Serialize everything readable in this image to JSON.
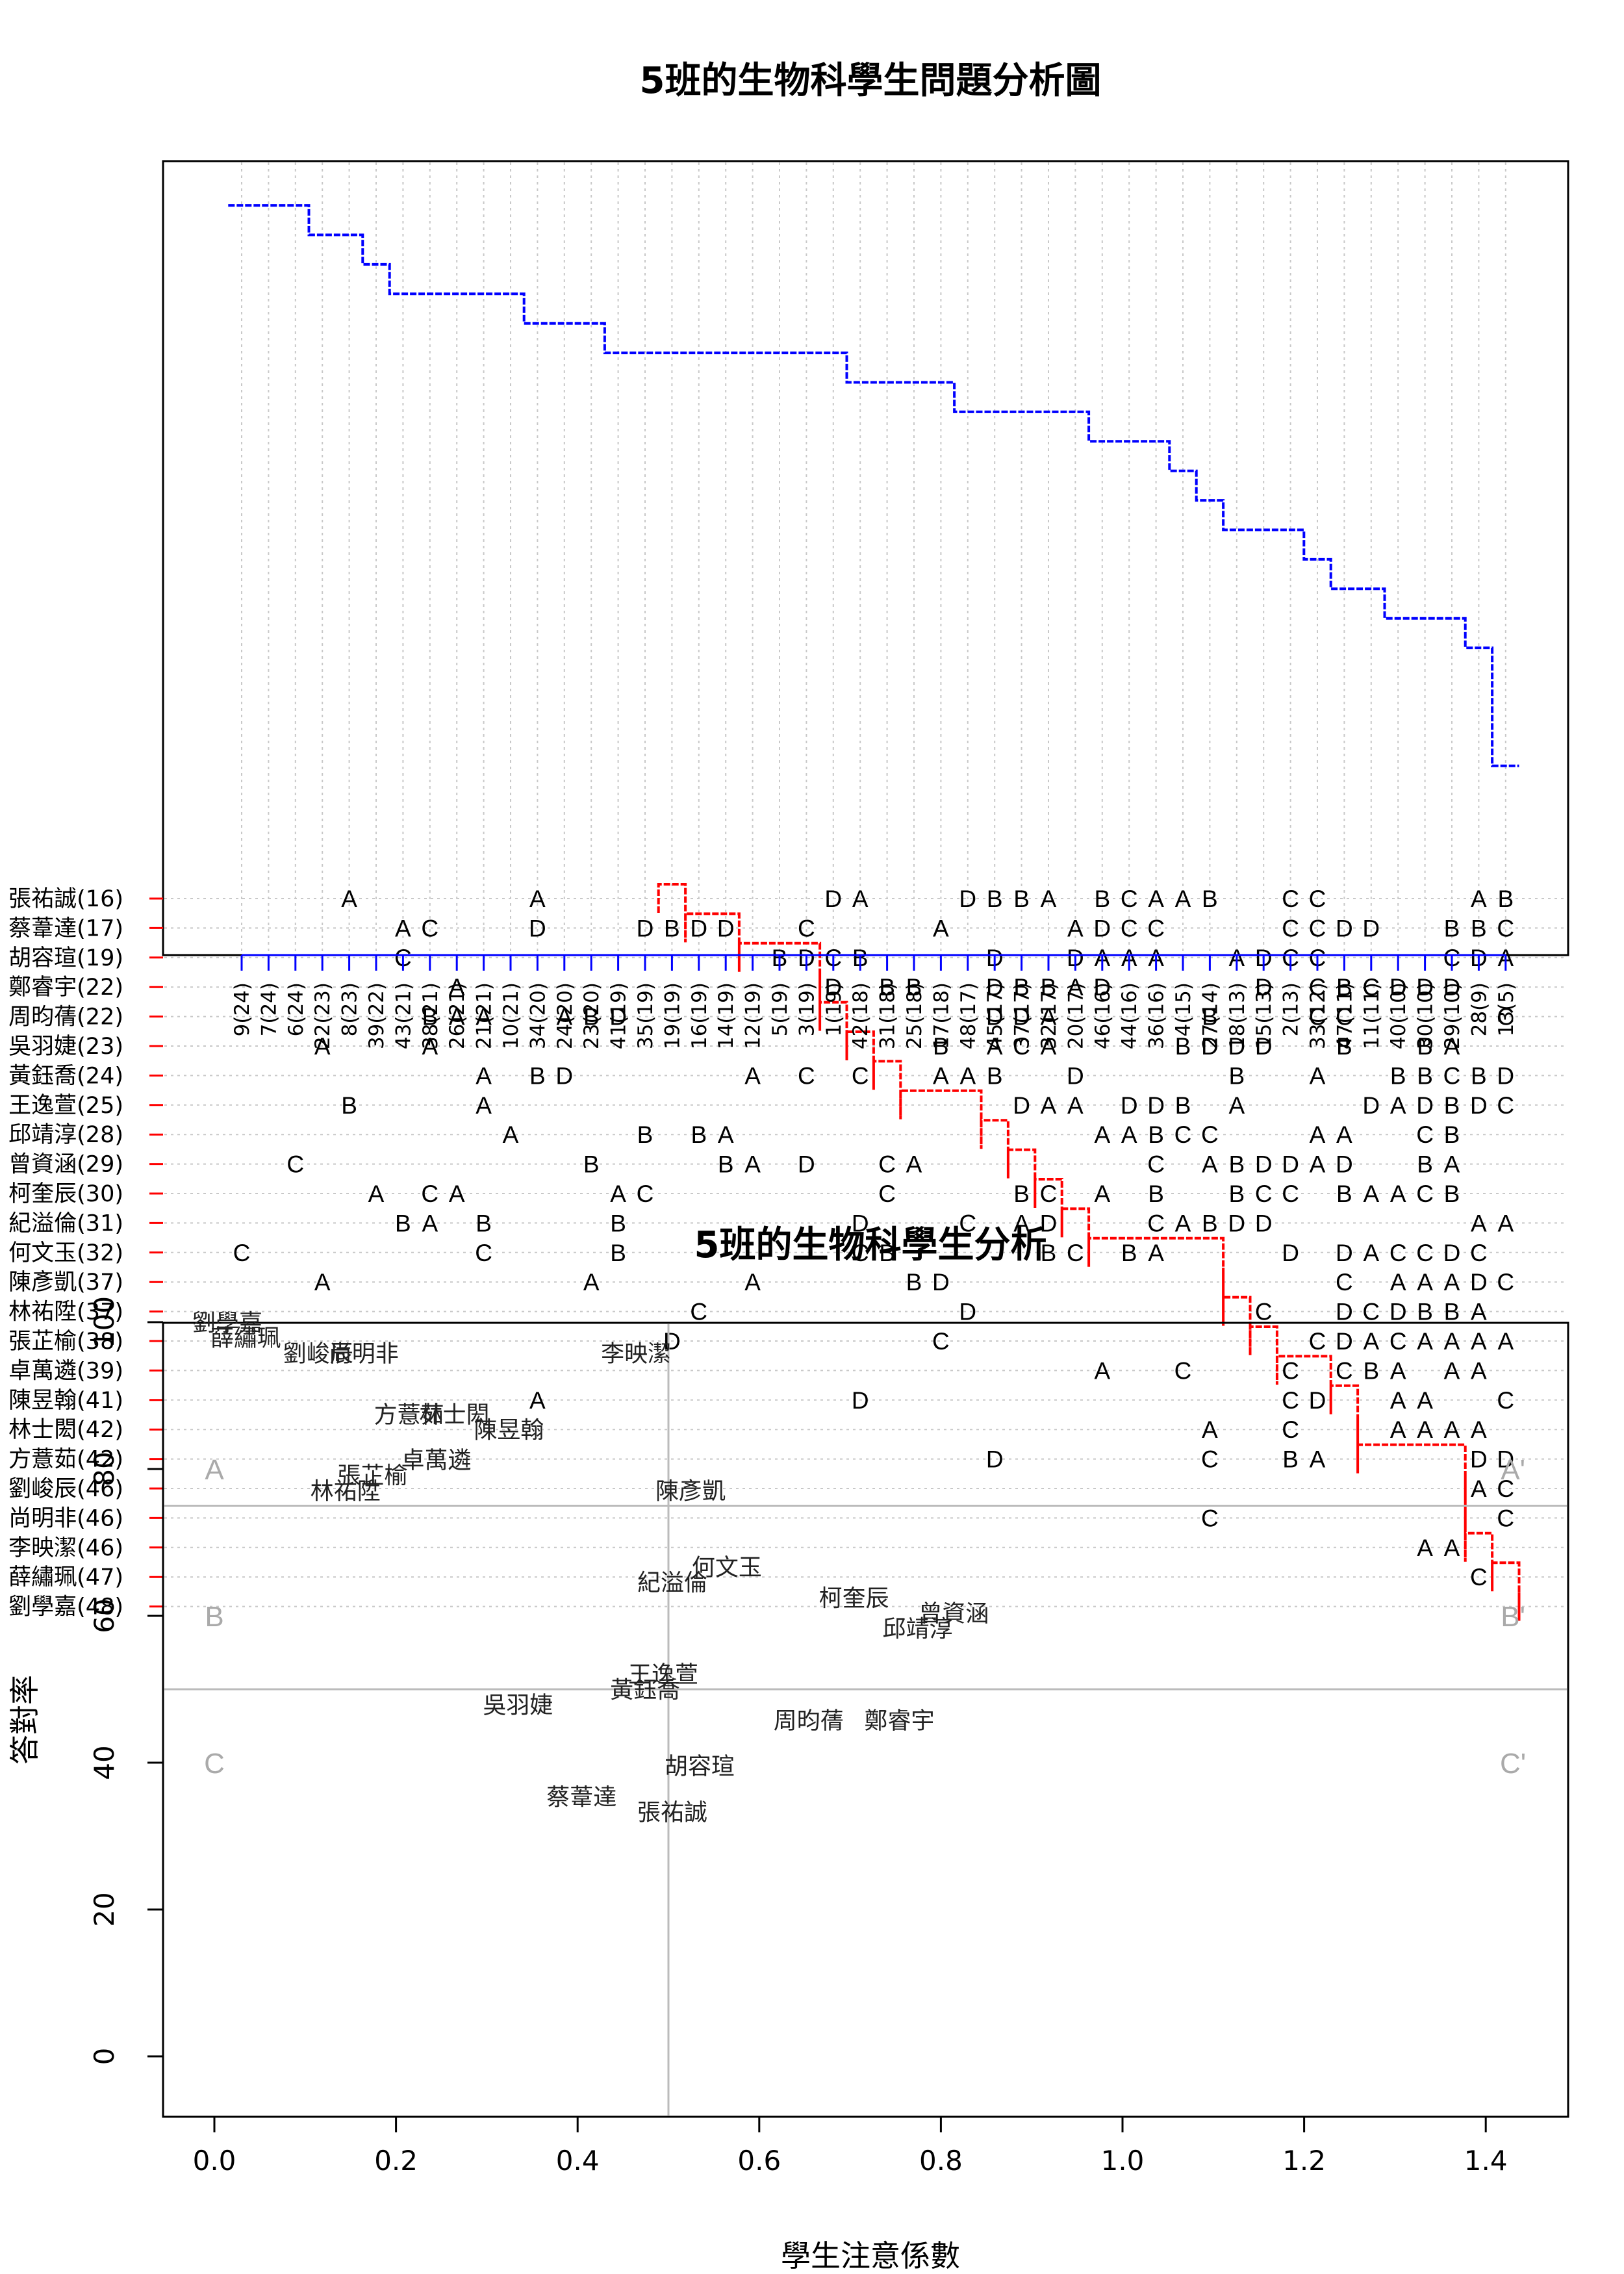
{
  "chart_data": [
    {
      "type": "scatter",
      "title": "5班的生物科學生問題分析圖",
      "students": [
        "劉學嘉(48)",
        "薛繡珮(47)",
        "李映潔(46)",
        "尚明非(46)",
        "劉峻辰(46)",
        "方薏茹(42)",
        "林士閎(42)",
        "陳昱翰(41)",
        "卓萬遴(39)",
        "張芷榆(38)",
        "林祐陞(37)",
        "陳彥凱(37)",
        "何文玉(32)",
        "紀溢倫(31)",
        "柯奎辰(30)",
        "曾資涵(29)",
        "邱靖淳(28)",
        "王逸萱(25)",
        "黃鈺喬(24)",
        "吳羽婕(23)",
        "周昀蒨(22)",
        "鄭睿宇(22)",
        "胡容瑄(19)",
        "蔡葦達(17)",
        "張祐誠(16)"
      ],
      "questions": [
        "9(24)",
        "7(24)",
        "6(24)",
        "22(23)",
        "8(23)",
        "39(22)",
        "43(21)",
        "38(21)",
        "26(21)",
        "21(21)",
        "10(21)",
        "34(20)",
        "24(20)",
        "23(20)",
        "41(19)",
        "35(19)",
        "19(19)",
        "16(19)",
        "14(19)",
        "12(19)",
        "5(19)",
        "3(19)",
        "1(19)",
        "42(18)",
        "31(18)",
        "25(18)",
        "17(18)",
        "48(17)",
        "45(17)",
        "37(17)",
        "32(17)",
        "20(17)",
        "46(16)",
        "44(16)",
        "36(16)",
        "4(15)",
        "27(14)",
        "18(13)",
        "15(13)",
        "2(13)",
        "33(12)",
        "47(11)",
        "11(11)",
        "40(10)",
        "30(10)",
        "29(10)",
        "28(9)",
        "13(5)"
      ],
      "wrong_answers": [
        "..............................................  ",
        "..............................................C.",
        "............................................AA..",
        "....................................C..........C",
        "..............................................AC",
        "............................D.......C..BA.....DD",
        "....................................A..C...AAAA.",
        "...........A...........D...............CD..AA..C",
        "................................A..C...C.CBA.AA.C",
        "................D.........C.............CDACAAAAC",
        ".................C.........D..........C..DCDBBA.AC",
        "...A.........A.....A.....BD..............C.AAADC",
        "C........C....B........CB.....BC.BA....D.DACCDC",
        "......BA.B....B........D...C.AD...CABDD.......AADC",
        ".....A.CA.....AC........C....BC.A.B..BCC.BAACB...",
        "..C..........B....BA.D..CA........C.ABDDAD..BA..A.BB.",
        "..........A....B.BA.............AABCC...AA..CB..A..CDB.D..DA",
        "....B....A...................DAA.DDB.A....DADBDCA..D..DACC..DC",
        ".........A.BD......A.C.C..AAB..D.....B..A..BBCBDCCBAA..B..A",
        "...A...A..................B.ACA....BDDD..B..BA...DB..DBCB..BADAADA",
        ".......BAA..ABD.............DDA.....B...CC.....CCAD.CA....BCB..DCCDC",
        "........A.............D.BB..DBBAD.....D.CBCDDD..CA..CA....CC..DB..DD",
        "......C.............BDCB....D..DAAA..ADCC....CDAD.C..B...BBBBDCCDA",
        "......AC...D...DBDD..C....A....ADCC....CCDD..BBCDBDCBC..CBCAA",
        "....A......A..........DA...DBBA.BCAAB..CC.....AB.....ADBDCACBDDAC...BAC"
      ],
      "legend": "",
      "grid": true
    },
    {
      "type": "scatter",
      "title": "5班的生物科學生分析",
      "xlabel": "學生注意係數",
      "ylabel": "答對率",
      "xlim": [
        -0.06,
        1.5
      ],
      "ylim": [
        -4,
        104
      ],
      "xticks": [
        "0.0",
        "0.2",
        "0.4",
        "0.6",
        "0.8",
        "1.0",
        "1.2",
        "1.4"
      ],
      "yticks": [
        "0",
        "20",
        "40",
        "60",
        "80",
        "100"
      ],
      "quadrant_labels": [
        "A",
        "B",
        "C",
        "A'",
        "B'",
        "C'"
      ],
      "reference_lines": {
        "x": 0.5,
        "y": [
          50,
          75
        ]
      },
      "points": [
        {
          "name": "劉學嘉",
          "x": 0.0,
          "y": 100
        },
        {
          "name": "薛繡珮",
          "x": 0.02,
          "y": 97.9
        },
        {
          "name": "劉峻辰",
          "x": 0.1,
          "y": 95.8
        },
        {
          "name": "尚明非",
          "x": 0.15,
          "y": 95.8
        },
        {
          "name": "李映潔",
          "x": 0.45,
          "y": 95.8
        },
        {
          "name": "方薏茹",
          "x": 0.2,
          "y": 87.5
        },
        {
          "name": "林士閎",
          "x": 0.25,
          "y": 87.5
        },
        {
          "name": "陳昱翰",
          "x": 0.31,
          "y": 85.4
        },
        {
          "name": "卓萬遴",
          "x": 0.23,
          "y": 81.3
        },
        {
          "name": "張芷榆",
          "x": 0.16,
          "y": 79.2
        },
        {
          "name": "林祐陞",
          "x": 0.13,
          "y": 77.1
        },
        {
          "name": "陳彥凱",
          "x": 0.51,
          "y": 77.1
        },
        {
          "name": "何文玉",
          "x": 0.55,
          "y": 66.7
        },
        {
          "name": "紀溢倫",
          "x": 0.49,
          "y": 64.6
        },
        {
          "name": "柯奎辰",
          "x": 0.69,
          "y": 62.5
        },
        {
          "name": "曾資涵",
          "x": 0.8,
          "y": 60.4
        },
        {
          "name": "邱靖淳",
          "x": 0.76,
          "y": 58.3
        },
        {
          "name": "王逸萱",
          "x": 0.48,
          "y": 52.1
        },
        {
          "name": "黃鈺喬",
          "x": 0.46,
          "y": 50.0
        },
        {
          "name": "吳羽婕",
          "x": 0.32,
          "y": 47.9
        },
        {
          "name": "周昀蒨",
          "x": 0.64,
          "y": 45.8
        },
        {
          "name": "鄭睿宇",
          "x": 0.74,
          "y": 45.8
        },
        {
          "name": "胡容瑄",
          "x": 0.52,
          "y": 39.6
        },
        {
          "name": "蔡葦達",
          "x": 0.39,
          "y": 35.4
        },
        {
          "name": "張祐誠",
          "x": 0.49,
          "y": 33.3
        }
      ]
    }
  ],
  "colors": {
    "red_line": "#ff0000",
    "blue_line": "#0000ff",
    "grid": "#c8c8c8",
    "quad": "#aaaaaa"
  }
}
